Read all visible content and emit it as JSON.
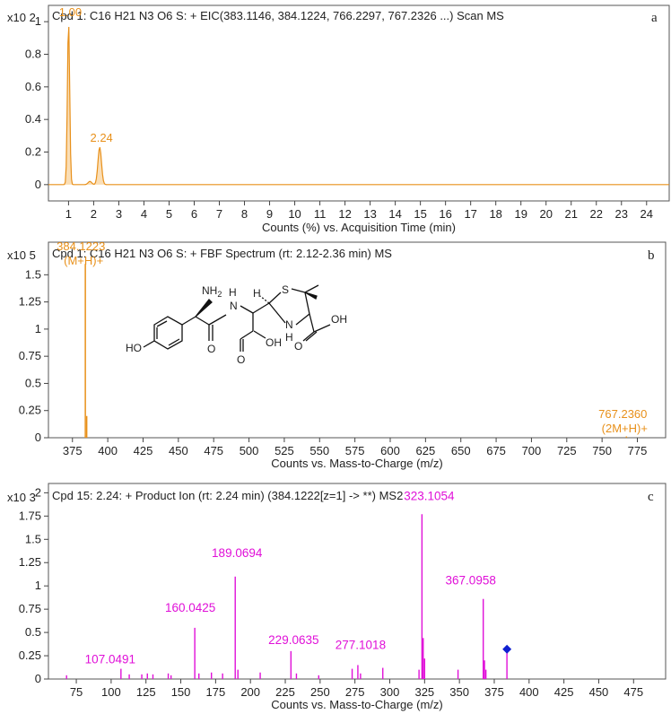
{
  "chart_data": [
    {
      "type": "line",
      "panel_letter": "a",
      "title": "Cpd 1: C16 H21 N3 O6 S: + EIC(383.1146, 384.1224, 766.2297, 767.2326 ...) Scan MS",
      "xlabel": "Counts (%) vs. Acquisition Time (min)",
      "y_multiplier": "x10 2",
      "xlim": [
        0.2,
        24.9
      ],
      "ylim": [
        -0.1,
        1.1
      ],
      "xticks": [
        1,
        2,
        3,
        4,
        5,
        6,
        7,
        8,
        9,
        10,
        11,
        12,
        13,
        14,
        15,
        16,
        17,
        18,
        19,
        20,
        21,
        22,
        23,
        24
      ],
      "yticks": [
        {
          "value": 0,
          "label": "0"
        },
        {
          "value": 0.2,
          "label": "0.2"
        },
        {
          "value": 0.4,
          "label": "0.4"
        },
        {
          "value": 0.6,
          "label": "0.6"
        },
        {
          "value": 0.8,
          "label": "0.8"
        },
        {
          "value": 1,
          "label": "1"
        }
      ],
      "peaks": [
        {
          "x": 1.0,
          "y": 1.0,
          "label": "1.00"
        },
        {
          "x": 1.85,
          "y": 0.02,
          "label": ""
        },
        {
          "x": 2.24,
          "y": 0.23,
          "label": "2.24"
        }
      ],
      "color": "#E8901A"
    },
    {
      "type": "bar",
      "panel_letter": "b",
      "title": "Cpd 1: C16 H21 N3 O6 S: + FBF Spectrum (rt: 2.12-2.36 min) MS",
      "xlabel": "Counts vs. Mass-to-Charge (m/z)",
      "y_multiplier": "x10 5",
      "xlim": [
        358,
        795
      ],
      "ylim": [
        0,
        1.8
      ],
      "xticks": [
        375,
        400,
        425,
        450,
        475,
        500,
        525,
        550,
        575,
        600,
        625,
        650,
        675,
        700,
        725,
        750,
        775
      ],
      "yticks": [
        {
          "value": 0,
          "label": "0"
        },
        {
          "value": 0.25,
          "label": "0.25"
        },
        {
          "value": 0.5,
          "label": "0.5"
        },
        {
          "value": 0.75,
          "label": "0.75"
        },
        {
          "value": 1,
          "label": "1"
        },
        {
          "value": 1.25,
          "label": "1.25"
        },
        {
          "value": 1.5,
          "label": "1.5"
        }
      ],
      "peaks": [
        {
          "mz": 384.1223,
          "intensity": 1.6,
          "label": "384.1223",
          "label2": "(M+H)+"
        },
        {
          "mz": 385.1,
          "intensity": 0.2,
          "label": "",
          "label2": ""
        },
        {
          "mz": 767.236,
          "intensity": 0.004,
          "label": "767.2360",
          "label2": "(2M+H)+"
        }
      ],
      "structure_labels": {
        "nh2": "NH",
        "nh2_sub": "2",
        "nh": "N",
        "h_amide": "H",
        "h_ring": "H",
        "s": "S",
        "nh_ring": "N",
        "h_nring": "H",
        "ho": "HO",
        "oh1": "OH",
        "oh2": "OH",
        "o1": "O",
        "o2": "O",
        "o3": "O"
      },
      "color": "#E8901A"
    },
    {
      "type": "bar",
      "panel_letter": "c",
      "title": "Cpd 15: 2.24: + Product Ion (rt: 2.24 min) (384.1222[z=1] -> **) MS2",
      "xlabel": "Counts vs. Mass-to-Charge (m/z)",
      "y_multiplier": "x10 3",
      "xlim": [
        55,
        498
      ],
      "ylim": [
        0,
        2.1
      ],
      "xticks": [
        75,
        100,
        125,
        150,
        175,
        200,
        225,
        250,
        275,
        300,
        325,
        350,
        375,
        400,
        425,
        450,
        475
      ],
      "yticks": [
        {
          "value": 0,
          "label": "0"
        },
        {
          "value": 0.25,
          "label": "0.25"
        },
        {
          "value": 0.5,
          "label": "0.5"
        },
        {
          "value": 0.75,
          "label": "0.75"
        },
        {
          "value": 1,
          "label": "1"
        },
        {
          "value": 1.25,
          "label": "1.25"
        },
        {
          "value": 1.5,
          "label": "1.5"
        },
        {
          "value": 1.75,
          "label": "1.75"
        },
        {
          "value": 2,
          "label": "2"
        }
      ],
      "peaks": [
        {
          "mz": 68.0,
          "intensity": 0.04,
          "label": ""
        },
        {
          "mz": 107.0491,
          "intensity": 0.11,
          "label": "107.0491"
        },
        {
          "mz": 113.0,
          "intensity": 0.05,
          "label": ""
        },
        {
          "mz": 122.0,
          "intensity": 0.05,
          "label": ""
        },
        {
          "mz": 126.0,
          "intensity": 0.06,
          "label": ""
        },
        {
          "mz": 130.0,
          "intensity": 0.05,
          "label": ""
        },
        {
          "mz": 141.0,
          "intensity": 0.06,
          "label": ""
        },
        {
          "mz": 143.0,
          "intensity": 0.04,
          "label": ""
        },
        {
          "mz": 160.0425,
          "intensity": 0.55,
          "label": "160.0425"
        },
        {
          "mz": 163.0,
          "intensity": 0.06,
          "label": ""
        },
        {
          "mz": 172.0,
          "intensity": 0.07,
          "label": ""
        },
        {
          "mz": 180.0,
          "intensity": 0.06,
          "label": ""
        },
        {
          "mz": 189.0694,
          "intensity": 1.1,
          "label": "189.0694"
        },
        {
          "mz": 191.0,
          "intensity": 0.1,
          "label": ""
        },
        {
          "mz": 207.0,
          "intensity": 0.07,
          "label": ""
        },
        {
          "mz": 229.0635,
          "intensity": 0.3,
          "label": "229.0635"
        },
        {
          "mz": 233.0,
          "intensity": 0.06,
          "label": ""
        },
        {
          "mz": 249.0,
          "intensity": 0.04,
          "label": ""
        },
        {
          "mz": 273.0,
          "intensity": 0.11,
          "label": ""
        },
        {
          "mz": 277.1018,
          "intensity": 0.15,
          "label": "277.1018"
        },
        {
          "mz": 279.0,
          "intensity": 0.06,
          "label": ""
        },
        {
          "mz": 295.0,
          "intensity": 0.12,
          "label": ""
        },
        {
          "mz": 321.0,
          "intensity": 0.1,
          "label": ""
        },
        {
          "mz": 323.1054,
          "intensity": 1.77,
          "label": "323.1054"
        },
        {
          "mz": 324.0,
          "intensity": 0.44,
          "label": ""
        },
        {
          "mz": 325.0,
          "intensity": 0.22,
          "label": ""
        },
        {
          "mz": 349.0,
          "intensity": 0.1,
          "label": ""
        },
        {
          "mz": 367.0958,
          "intensity": 0.86,
          "label": "367.0958"
        },
        {
          "mz": 368.0,
          "intensity": 0.2,
          "label": ""
        },
        {
          "mz": 369.0,
          "intensity": 0.1,
          "label": ""
        },
        {
          "mz": 384.1,
          "intensity": 0.32,
          "label": ""
        }
      ],
      "precursor": {
        "mz": 384.1222,
        "intensity": 0.32
      },
      "color": "#E010D8",
      "precursor_color": "#1020D0"
    }
  ]
}
